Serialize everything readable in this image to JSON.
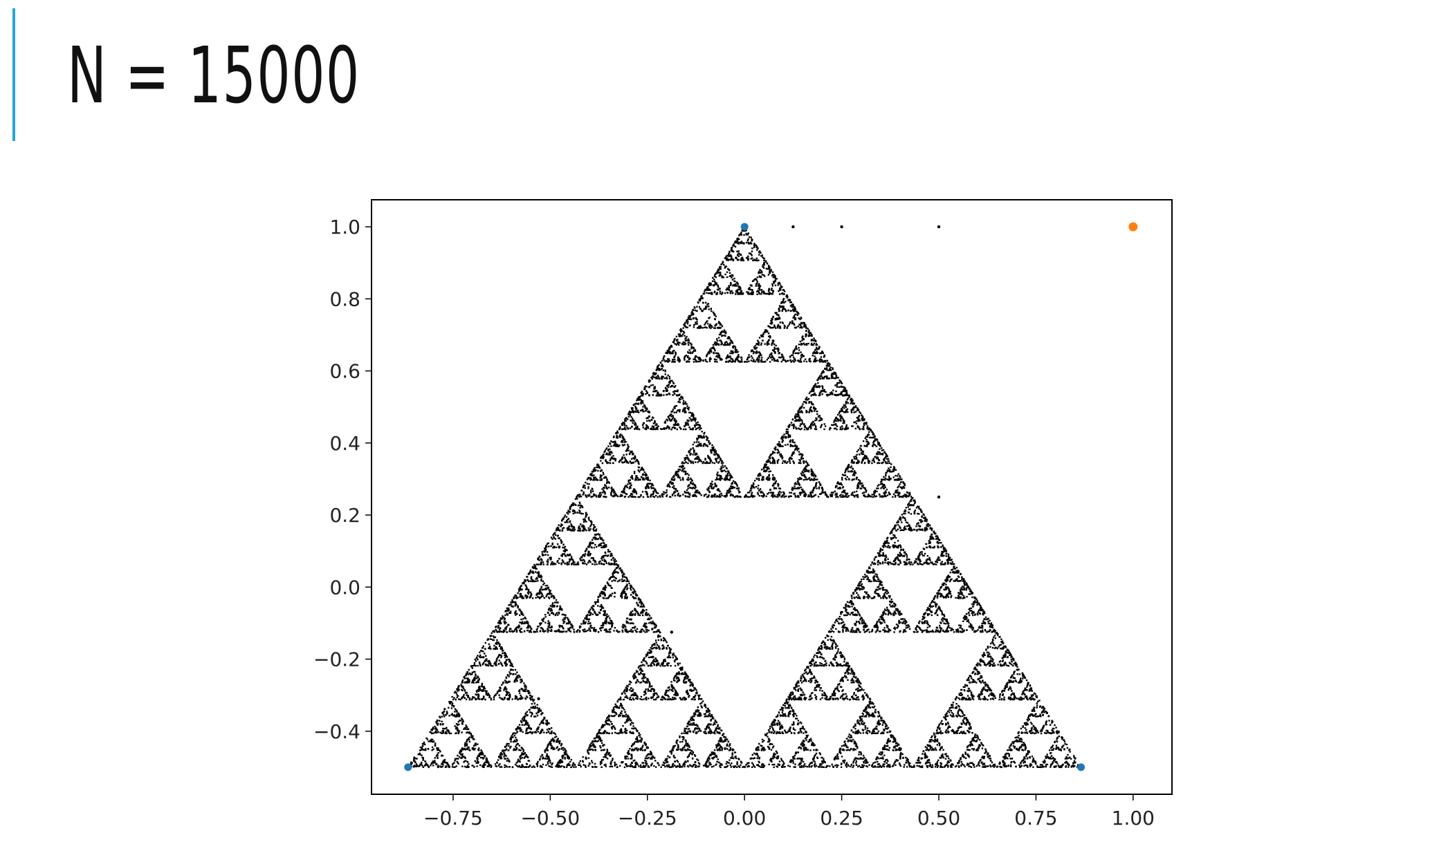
{
  "slide": {
    "title": "N = 15000",
    "accent_color": "#29a3d6"
  },
  "chart_data": {
    "type": "scatter",
    "title": "",
    "xlabel": "",
    "ylabel": "",
    "xlim": [
      -0.96,
      1.1
    ],
    "ylim": [
      -0.575,
      1.075
    ],
    "xticks": [
      -0.75,
      -0.5,
      -0.25,
      0.0,
      0.25,
      0.5,
      0.75,
      1.0
    ],
    "xtick_labels": [
      "−0.75",
      "−0.50",
      "−0.25",
      "0.00",
      "0.25",
      "0.50",
      "0.75",
      "1.00"
    ],
    "yticks": [
      -0.4,
      -0.2,
      0.0,
      0.2,
      0.4,
      0.6,
      0.8,
      1.0
    ],
    "ytick_labels": [
      "−0.4",
      "−0.2",
      "0.0",
      "0.2",
      "0.4",
      "0.6",
      "0.8",
      "1.0"
    ],
    "grid": false,
    "legend": "none",
    "series": [
      {
        "role": "iterated-points",
        "color": "#000000",
        "count": 15000,
        "description": "chaos-game points filling Sierpinski triangle with vertices (0,1), (-0.866,-0.5), (0.866,-0.5)",
        "stray_points": [
          [
            0.125,
            1.0
          ],
          [
            0.25,
            1.0
          ],
          [
            0.5,
            1.0
          ],
          [
            0.5,
            0.25
          ],
          [
            -0.1875,
            -0.125
          ],
          [
            -0.53,
            -0.31
          ]
        ]
      },
      {
        "role": "vertices",
        "color": "#1f77b4",
        "points": [
          [
            0.0,
            1.0
          ],
          [
            -0.866,
            -0.5
          ],
          [
            0.866,
            -0.5
          ]
        ]
      },
      {
        "role": "start-point",
        "color": "#ff7f0e",
        "points": [
          [
            1.0,
            1.0
          ]
        ]
      }
    ]
  }
}
